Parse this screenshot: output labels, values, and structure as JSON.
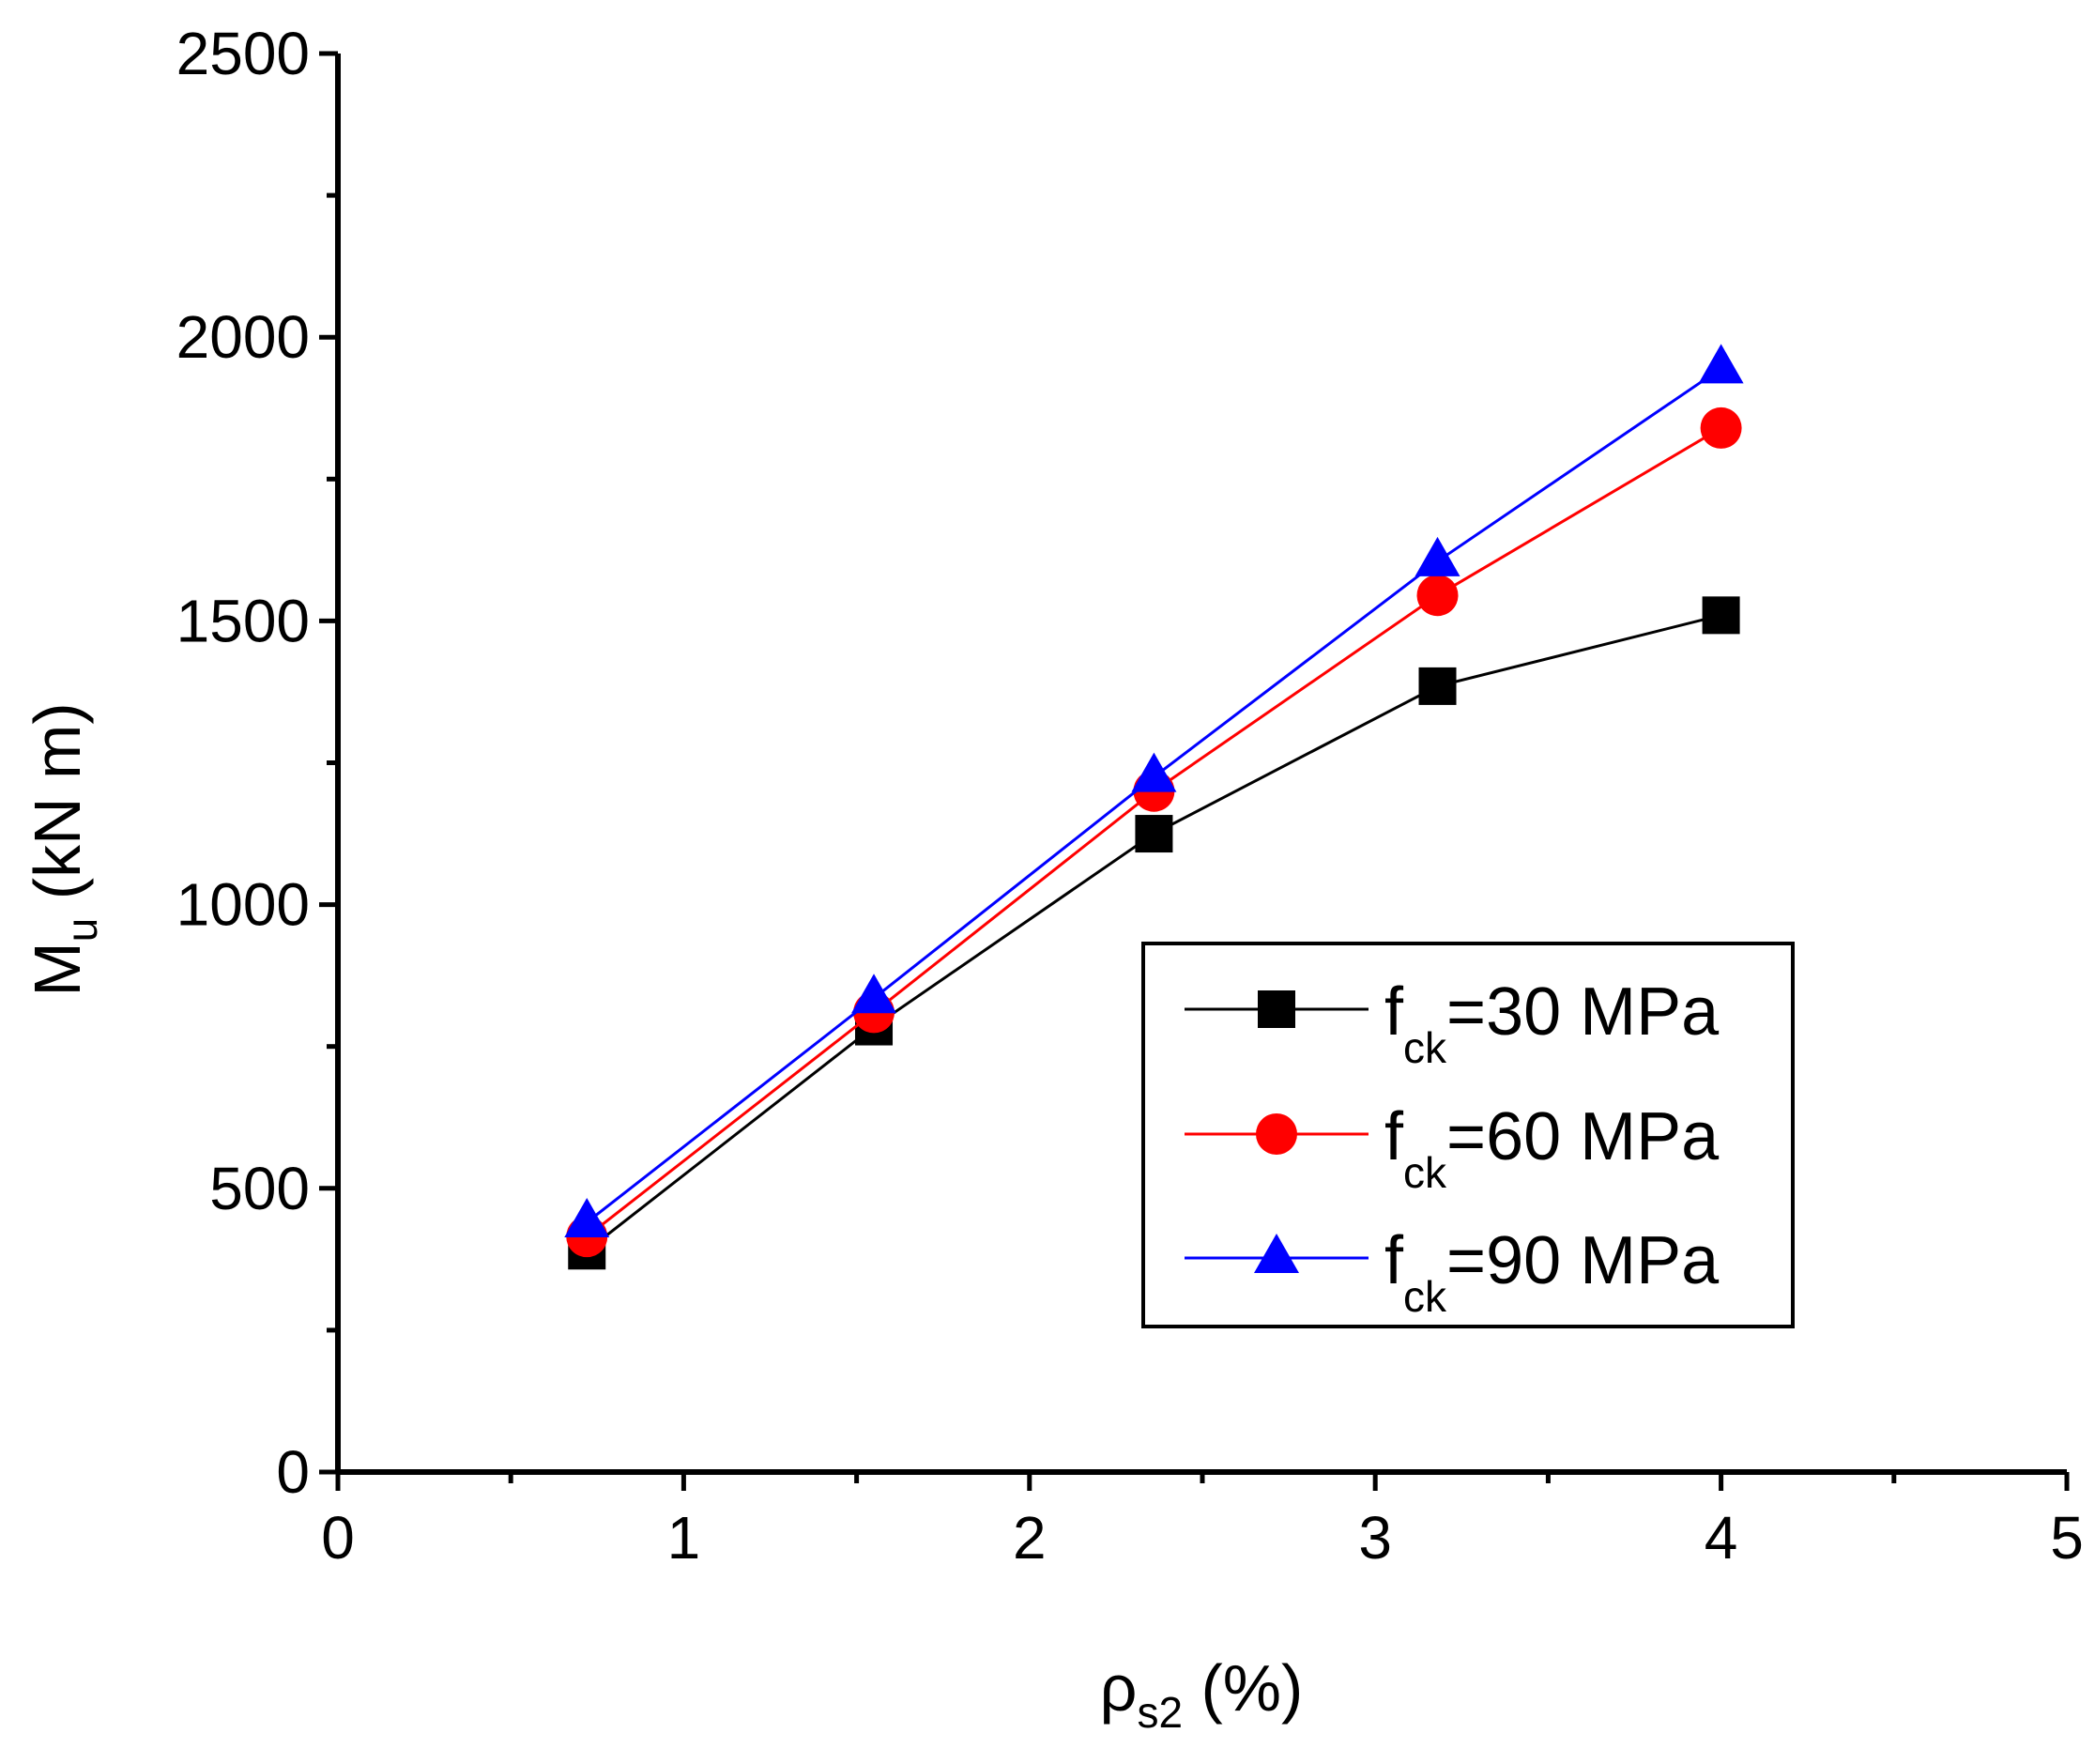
{
  "chart_data": {
    "type": "line",
    "title": "",
    "xlabel": {
      "symbol": "ρ",
      "subscript": "s2",
      "unit": " (%)"
    },
    "ylabel": {
      "symbol": "M",
      "subscript": "u",
      "unit": " (kN m)"
    },
    "xlim": [
      0,
      5
    ],
    "ylim": [
      0,
      2500
    ],
    "x_ticks": [
      {
        "value": 0,
        "label": "0"
      },
      {
        "value": 1,
        "label": "1"
      },
      {
        "value": 2,
        "label": "2"
      },
      {
        "value": 3,
        "label": "3"
      },
      {
        "value": 4,
        "label": "4"
      },
      {
        "value": 5,
        "label": "5"
      }
    ],
    "y_ticks": [
      {
        "value": 0,
        "label": "0"
      },
      {
        "value": 500,
        "label": "500"
      },
      {
        "value": 1000,
        "label": "1000"
      },
      {
        "value": 1500,
        "label": "1500"
      },
      {
        "value": 2000,
        "label": "2000"
      },
      {
        "value": 2500,
        "label": "2500"
      }
    ],
    "x_minor_step": 0.5,
    "y_minor_step": 250,
    "grid": false,
    "legend_position": "lower-right",
    "series": [
      {
        "name": "f_ck=30 MPa",
        "legend": {
          "symbol": "f",
          "subscript": "ck",
          "rest": "=30 MPa"
        },
        "color": "#000000",
        "marker": "square",
        "x": [
          0.72,
          1.55,
          2.36,
          3.18,
          4.0
        ],
        "y": [
          390,
          785,
          1125,
          1385,
          1510
        ]
      },
      {
        "name": "f_ck=60 MPa",
        "legend": {
          "symbol": "f",
          "subscript": "ck",
          "rest": "=60 MPa"
        },
        "color": "#ff0000",
        "marker": "circle",
        "x": [
          0.72,
          1.55,
          2.36,
          3.18,
          4.0
        ],
        "y": [
          415,
          810,
          1200,
          1545,
          1840
        ]
      },
      {
        "name": "f_ck=90 MPa",
        "legend": {
          "symbol": "f",
          "subscript": "ck",
          "rest": "=90 MPa"
        },
        "color": "#0000ff",
        "marker": "triangle",
        "x": [
          0.72,
          1.55,
          2.36,
          3.18,
          4.0
        ],
        "y": [
          440,
          835,
          1225,
          1605,
          1945
        ]
      }
    ]
  }
}
